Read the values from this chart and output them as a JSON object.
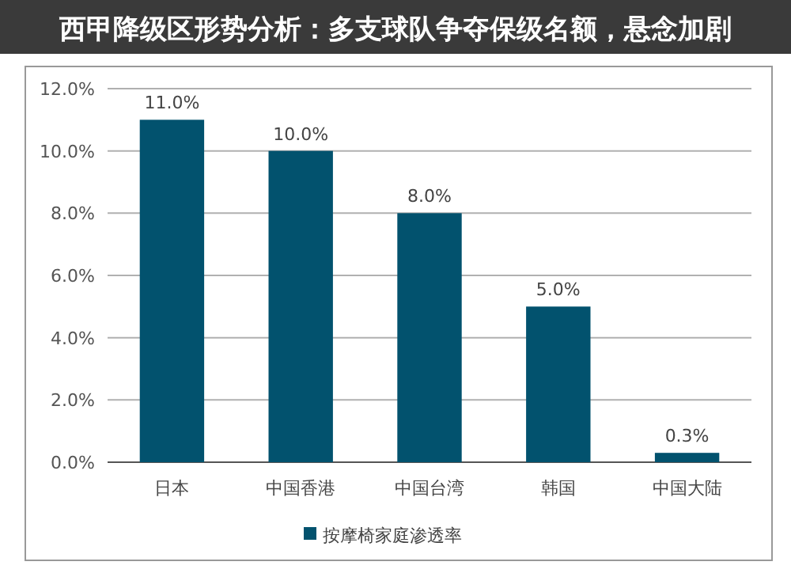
{
  "chart_data": {
    "type": "bar",
    "title": "西甲降级区形势分析：多支球队争夺保级名额，悬念加剧",
    "categories": [
      "日本",
      "中国香港",
      "中国台湾",
      "韩国",
      "中国大陆"
    ],
    "series": [
      {
        "name": "按摩椅家庭渗透率",
        "color": "#02526e",
        "values": [
          11.0,
          10.0,
          8.0,
          5.0,
          0.3
        ],
        "value_labels": [
          "11.0%",
          "10.0%",
          "8.0%",
          "5.0%",
          "0.3%"
        ]
      }
    ],
    "ylim": [
      0,
      12
    ],
    "yticks": [
      {
        "value": 0,
        "label": "0.0%"
      },
      {
        "value": 2,
        "label": "2.0%"
      },
      {
        "value": 4,
        "label": "4.0%"
      },
      {
        "value": 6,
        "label": "6.0%"
      },
      {
        "value": 8,
        "label": "8.0%"
      },
      {
        "value": 10,
        "label": "10.0%"
      },
      {
        "value": 12,
        "label": "12.0%"
      }
    ],
    "grid": "y",
    "legend": "bottom"
  }
}
